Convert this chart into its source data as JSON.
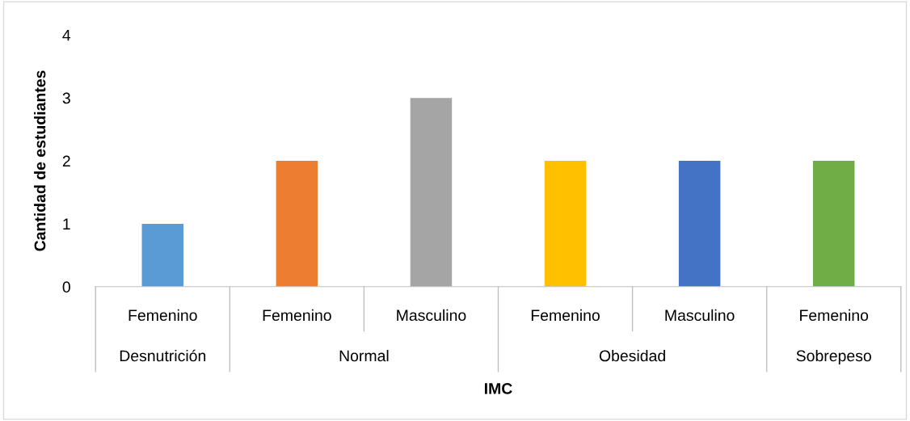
{
  "chart_data": {
    "type": "bar",
    "xlabel": "IMC",
    "ylabel": "Cantidad de estudiantes",
    "categories": [
      "Femenino",
      "Femenino",
      "Masculino",
      "Femenino",
      "Masculino",
      "Femenino"
    ],
    "values": [
      1,
      2,
      3,
      2,
      2,
      2
    ],
    "colors": [
      "#5b9bd5",
      "#ed7d31",
      "#a5a5a5",
      "#ffc000",
      "#4472c4",
      "#70ad47"
    ],
    "ylim": [
      0,
      4
    ],
    "yticks": [
      0,
      1,
      2,
      3,
      4
    ],
    "grid": false,
    "annotations": [
      "Desnutrición",
      "Normal",
      "Obesidad",
      "Sobrepeso"
    ]
  }
}
